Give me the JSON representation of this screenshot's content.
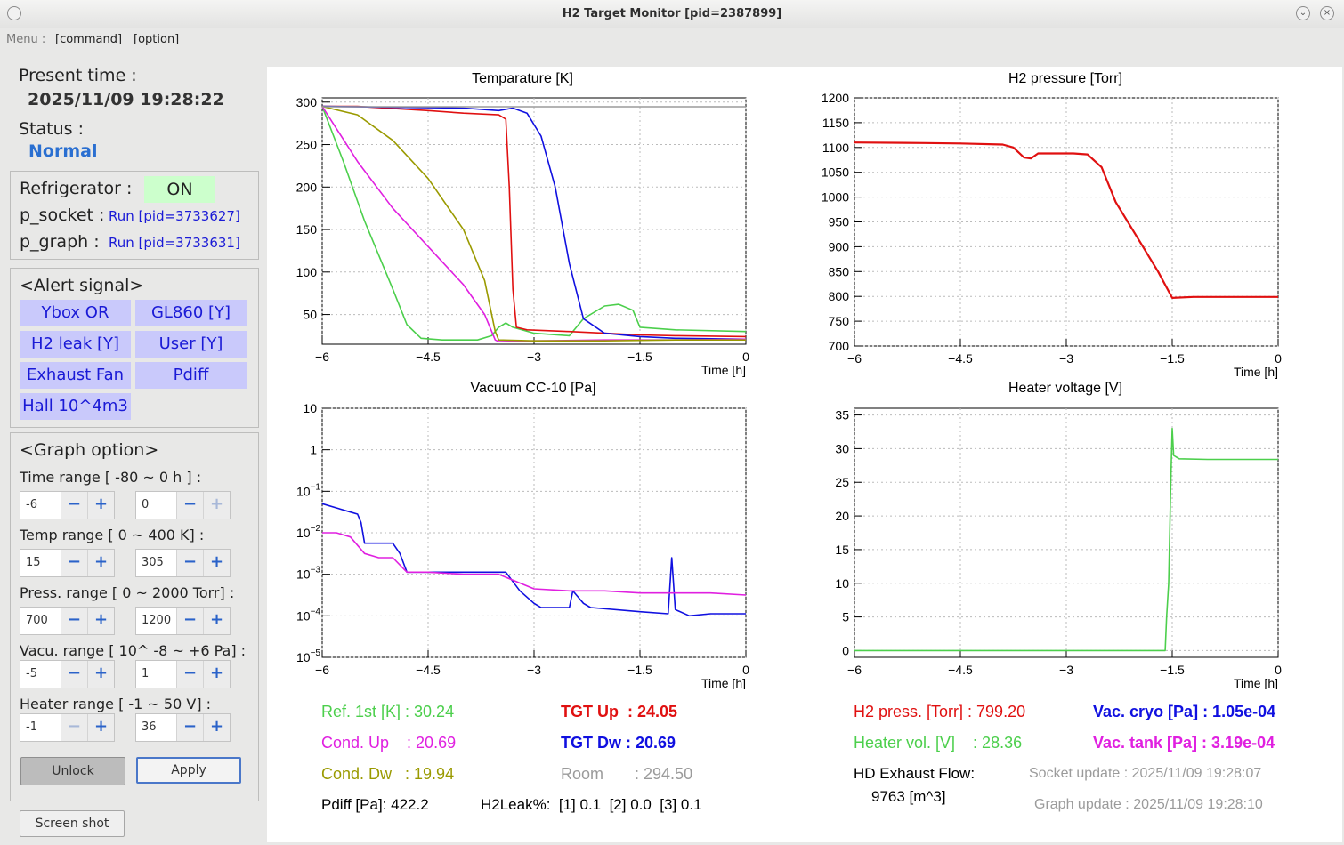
{
  "window": {
    "title": "H2 Target Monitor [pid=2387899]"
  },
  "menu": {
    "label": "Menu :",
    "command": "[command]",
    "option": "[option]"
  },
  "sidebar": {
    "present_time_label": "Present time :",
    "present_time": "2025/11/09  19:28:22",
    "status_label": "Status :",
    "status": "Normal",
    "refrigerator_label": "Refrigerator :",
    "refrigerator_state": "ON",
    "p_socket_label": "p_socket :",
    "p_socket_value": "Run [pid=3733627]",
    "p_graph_label": "p_graph :",
    "p_graph_value": "Run [pid=3733631]",
    "alert_title": "<Alert signal>",
    "alerts": [
      "Ybox OR",
      "GL860 [Y]",
      "H2 leak [Y]",
      "User [Y]",
      "Exhaust Fan",
      "Pdiff",
      "Hall 10^4m3"
    ],
    "graph_option_title": "<Graph option>",
    "ranges": [
      {
        "label": "Time range [ -80 ~ 0 h ] :",
        "min": "-6",
        "max": "0"
      },
      {
        "label": "Temp range [ 0 ~ 400 K] :",
        "min": "15",
        "max": "305"
      },
      {
        "label": "Press. range [ 0 ~ 2000 Torr] :",
        "min": "700",
        "max": "1200"
      },
      {
        "label": "Vacu. range [ 10^ -8 ~ +6 Pa] :",
        "min": "-5",
        "max": "1"
      },
      {
        "label": "Heater range [ -1 ~ 50 V] :",
        "min": "-1",
        "max": "36"
      }
    ],
    "unlock_label": "Unlock",
    "apply_label": "Apply",
    "screenshot_label": "Screen shot"
  },
  "graphs": {
    "temperature_title": "Temparature [K]",
    "pressure_title": "H2 pressure [Torr]",
    "vacuum_title": "Vacuum CC-10 [Pa]",
    "heater_title": "Heater voltage [V]",
    "time_label": "Time [h]",
    "x_ticks": [
      "−6",
      "−4.5",
      "−3",
      "−1.5",
      "0"
    ],
    "temp_ticks": [
      "300",
      "250",
      "200",
      "150",
      "100",
      "50"
    ],
    "press_ticks": [
      "1200",
      "1150",
      "1100",
      "1050",
      "1000",
      "950",
      "900",
      "850",
      "800",
      "750",
      "700"
    ],
    "vac_ticks": [
      {
        "base": "10",
        "exp": ""
      },
      {
        "base": "1",
        "exp": ""
      },
      {
        "base": "10",
        "exp": "−1"
      },
      {
        "base": "10",
        "exp": "−2"
      },
      {
        "base": "10",
        "exp": "−3"
      },
      {
        "base": "10",
        "exp": "−4"
      },
      {
        "base": "10",
        "exp": "−5"
      }
    ],
    "heater_ticks": [
      "35",
      "30",
      "25",
      "20",
      "15",
      "10",
      "5",
      "0"
    ]
  },
  "readouts": {
    "ref1st": "Ref. 1st [K] : 30.24",
    "tgt_up": "TGT Up  : 24.05",
    "cond_up": "Cond. Up    : 20.69",
    "tgt_dw": "TGT Dw : 20.69",
    "cond_dw": "Cond. Dw   : 19.94",
    "room": "Room       : 294.50",
    "pdiff": "Pdiff [Pa]: 422.2",
    "h2leak": "H2Leak%:  [1] 0.1  [2] 0.0  [3] 0.1",
    "h2press": "H2 press. [Torr] : 799.20",
    "vac_cryo": "Vac. cryo [Pa] : 1.05e-04",
    "heater_vol": "Heater vol. [V]    : 28.36",
    "vac_tank": "Vac. tank [Pa] : 3.19e-04",
    "hd_exhaust_label": "HD Exhaust Flow:",
    "hd_exhaust_value": "9763 [m^3]",
    "socket_update": "Socket update : 2025/11/09 19:28:07",
    "graph_update": "Graph update : 2025/11/09 19:28:10"
  },
  "colors": {
    "green": "#4ccf4c",
    "red": "#e01010",
    "magenta": "#e020e0",
    "blue": "#1010e0",
    "olive": "#9a9a00",
    "gray": "#9b9b9b",
    "status": "#2a6fd1",
    "alert_bg": "#c9c9fb",
    "on_bg": "#ccffcc"
  },
  "chart_data": [
    {
      "type": "line",
      "title": "Temparature [K]",
      "xlabel": "Time [h]",
      "xlim": [
        -6,
        0
      ],
      "ylim": [
        15,
        305
      ],
      "series": [
        {
          "name": "Ref. 1st [K]",
          "color": "#4ccf4c",
          "x": [
            -6,
            -5.7,
            -5.4,
            -5.0,
            -4.8,
            -4.6,
            -4.3,
            -3.8,
            -3.6,
            -3.5,
            -3.4,
            -3.3,
            -3.0,
            -2.5,
            -2.3,
            -2.0,
            -1.8,
            -1.6,
            -1.5,
            -1,
            0
          ],
          "y": [
            295,
            230,
            160,
            80,
            38,
            22,
            20,
            20,
            25,
            35,
            40,
            35,
            28,
            25,
            45,
            60,
            62,
            55,
            35,
            32,
            30
          ]
        },
        {
          "name": "TGT Up",
          "color": "#e01010",
          "x": [
            -6,
            -5.5,
            -4.5,
            -4,
            -3.5,
            -3.4,
            -3.35,
            -3.3,
            -3.25,
            -3.1,
            -2.5,
            -2.0,
            -1.5,
            -1,
            0
          ],
          "y": [
            295,
            295,
            290,
            287,
            285,
            280,
            200,
            80,
            35,
            32,
            30,
            28,
            26,
            25,
            24
          ]
        },
        {
          "name": "TGT Dw",
          "color": "#1010e0",
          "x": [
            -6,
            -4,
            -3.5,
            -3.3,
            -3.1,
            -2.9,
            -2.7,
            -2.5,
            -2.3,
            -2.0,
            -1.5,
            -1,
            0
          ],
          "y": [
            295,
            293,
            290,
            293,
            287,
            260,
            200,
            110,
            45,
            28,
            24,
            22,
            21
          ]
        },
        {
          "name": "Cond. Up",
          "color": "#e020e0",
          "x": [
            -6,
            -5.5,
            -5,
            -4.5,
            -4,
            -3.7,
            -3.55,
            -3.5,
            -3,
            -2,
            -1,
            0
          ],
          "y": [
            295,
            230,
            175,
            130,
            85,
            50,
            20,
            18,
            19,
            20,
            20,
            21
          ]
        },
        {
          "name": "Cond. Dw",
          "color": "#9a9a00",
          "x": [
            -6,
            -5.5,
            -5,
            -4.5,
            -4,
            -3.7,
            -3.55,
            -3.5,
            -3,
            -2,
            -1,
            0
          ],
          "y": [
            295,
            285,
            255,
            210,
            150,
            90,
            30,
            20,
            19,
            19,
            20,
            20
          ]
        },
        {
          "name": "Room",
          "color": "#9b9b9b",
          "x": [
            -6,
            0
          ],
          "y": [
            294.5,
            294.5
          ]
        }
      ]
    },
    {
      "type": "line",
      "title": "H2 pressure [Torr]",
      "xlabel": "Time [h]",
      "xlim": [
        -6,
        0
      ],
      "ylim": [
        700,
        1200
      ],
      "series": [
        {
          "name": "H2 press. [Torr]",
          "color": "#e01010",
          "x": [
            -6,
            -5,
            -4.5,
            -3.9,
            -3.75,
            -3.6,
            -3.5,
            -3.4,
            -3.2,
            -2.9,
            -2.7,
            -2.5,
            -2.3,
            -2.0,
            -1.7,
            -1.5,
            -1.2,
            0
          ],
          "y": [
            1110,
            1109,
            1108,
            1106,
            1100,
            1080,
            1078,
            1088,
            1088,
            1088,
            1086,
            1060,
            990,
            920,
            850,
            797,
            799,
            799
          ]
        }
      ]
    },
    {
      "type": "line",
      "title": "Vacuum CC-10 [Pa]",
      "xlabel": "Time [h]",
      "xlim": [
        -6,
        0
      ],
      "ylim": [
        -5,
        1
      ],
      "yscale": "log",
      "series": [
        {
          "name": "Vac. cryo [Pa]",
          "color": "#1010e0",
          "x": [
            -6,
            -5.8,
            -5.6,
            -5.5,
            -5.45,
            -5.4,
            -5.3,
            -5.0,
            -4.9,
            -4.8,
            -4.6,
            -4.4,
            -3.7,
            -3.5,
            -3.4,
            -3.2,
            -3.0,
            -2.9,
            -2.5,
            -2.45,
            -2.4,
            -2.3,
            -2.2,
            -1.5,
            -1.1,
            -1.05,
            -1.0,
            -0.8,
            -0.5,
            0
          ],
          "y": [
            -1.3,
            -1.4,
            -1.5,
            -1.55,
            -1.75,
            -2.25,
            -2.25,
            -2.25,
            -2.5,
            -2.95,
            -2.95,
            -2.95,
            -2.95,
            -2.95,
            -2.95,
            -3.4,
            -3.7,
            -3.8,
            -3.8,
            -3.4,
            -3.5,
            -3.7,
            -3.8,
            -3.9,
            -3.95,
            -2.6,
            -3.85,
            -4.0,
            -3.95,
            -3.95
          ]
        },
        {
          "name": "Vac. tank [Pa]",
          "color": "#e020e0",
          "x": [
            -6,
            -5.8,
            -5.6,
            -5.4,
            -5.2,
            -5.0,
            -4.8,
            -4.5,
            -4.0,
            -3.5,
            -3.0,
            -2.5,
            -2.0,
            -1.5,
            -1.0,
            -0.5,
            0
          ],
          "y": [
            -2.0,
            -2.0,
            -2.1,
            -2.5,
            -2.6,
            -2.6,
            -2.95,
            -2.95,
            -3.0,
            -3.0,
            -3.35,
            -3.4,
            -3.4,
            -3.45,
            -3.45,
            -3.45,
            -3.5
          ]
        }
      ]
    },
    {
      "type": "line",
      "title": "Heater voltage [V]",
      "xlabel": "Time [h]",
      "xlim": [
        -6,
        0
      ],
      "ylim": [
        -1,
        36
      ],
      "series": [
        {
          "name": "Heater vol. [V]",
          "color": "#4ccf4c",
          "x": [
            -6,
            -1.6,
            -1.58,
            -1.55,
            -1.52,
            -1.5,
            -1.48,
            -1.45,
            -1.4,
            -1,
            0
          ],
          "y": [
            0,
            0,
            5,
            10,
            25,
            33,
            29,
            28.8,
            28.5,
            28.4,
            28.4
          ]
        }
      ]
    }
  ]
}
